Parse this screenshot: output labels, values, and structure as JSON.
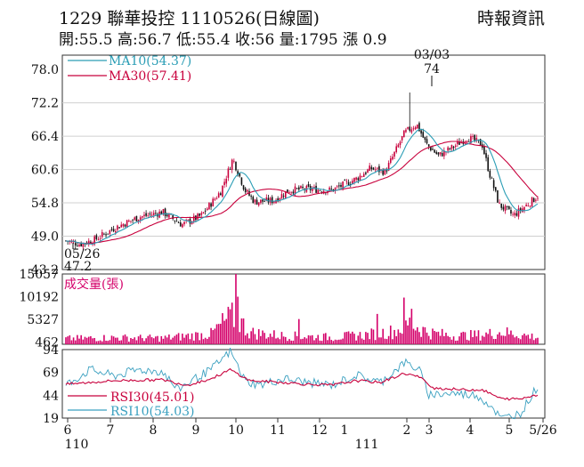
{
  "header": {
    "title": "1229  聯華投控 1110526(日線圖)",
    "quote": "開:55.5 高:56.7 低:55.4 收:56 量:1795 漲 0.9",
    "source": "時報資訊"
  },
  "colors": {
    "up": "#c8003c",
    "down": "#111111",
    "ma10": "#2a9db5",
    "ma30": "#c8003c",
    "volume": "#d4006a",
    "rsi30": "#c8003c",
    "rsi10": "#3aa0c0",
    "grid": "#d0d0d0"
  },
  "chart_data": [
    {
      "type": "line",
      "panel": "price",
      "ylim": [
        43.2,
        80.5
      ],
      "y_ticks": [
        "78.0",
        "72.2",
        "66.4",
        "60.6",
        "54.8",
        "49.0",
        "43.2"
      ],
      "legend": [
        "MA10(54.37)",
        "MA30(57.41)"
      ],
      "annotations": [
        {
          "label": "03/03",
          "value": "74"
        },
        {
          "label": "05/26",
          "value": "47.2"
        }
      ],
      "close_keypoints": [
        {
          "m": 0.0,
          "v": 48.2
        },
        {
          "m": 0.3,
          "v": 47.6
        },
        {
          "m": 0.6,
          "v": 48.4
        },
        {
          "m": 1.0,
          "v": 50.4
        },
        {
          "m": 1.5,
          "v": 52.3
        },
        {
          "m": 2.0,
          "v": 53.2
        },
        {
          "m": 2.4,
          "v": 51.0
        },
        {
          "m": 2.8,
          "v": 52.6
        },
        {
          "m": 3.2,
          "v": 56.8
        },
        {
          "m": 3.45,
          "v": 62.5
        },
        {
          "m": 3.7,
          "v": 57.0
        },
        {
          "m": 3.9,
          "v": 55.0
        },
        {
          "m": 4.3,
          "v": 55.2
        },
        {
          "m": 4.6,
          "v": 57.0
        },
        {
          "m": 5.0,
          "v": 57.2
        },
        {
          "m": 5.5,
          "v": 57.0
        },
        {
          "m": 6.0,
          "v": 59.0
        },
        {
          "m": 6.3,
          "v": 60.8
        },
        {
          "m": 6.6,
          "v": 60.2
        },
        {
          "m": 7.0,
          "v": 67.0
        },
        {
          "m": 7.25,
          "v": 68.5
        },
        {
          "m": 7.45,
          "v": 65.0
        },
        {
          "m": 7.7,
          "v": 63.0
        },
        {
          "m": 8.0,
          "v": 64.5
        },
        {
          "m": 8.3,
          "v": 66.2
        },
        {
          "m": 8.6,
          "v": 65.0
        },
        {
          "m": 8.75,
          "v": 60.0
        },
        {
          "m": 8.95,
          "v": 54.5
        },
        {
          "m": 9.25,
          "v": 52.6
        },
        {
          "m": 9.55,
          "v": 54.6
        },
        {
          "m": 9.75,
          "v": 56.0
        }
      ],
      "spike": {
        "m": 7.1,
        "high": 74.0
      },
      "ma_window": [
        10,
        30
      ]
    },
    {
      "type": "bar",
      "panel": "volume",
      "ylim": [
        0,
        15057
      ],
      "y_ticks": [
        "15057",
        "10192",
        "5327",
        "462"
      ],
      "legend": "成交量(張)",
      "volume_keypoints": [
        {
          "m": 0.0,
          "v": 1200
        },
        {
          "m": 1.0,
          "v": 1400
        },
        {
          "m": 2.0,
          "v": 1300
        },
        {
          "m": 3.0,
          "v": 2200
        },
        {
          "m": 3.3,
          "v": 5000
        },
        {
          "m": 3.5,
          "v": 6000
        },
        {
          "m": 3.8,
          "v": 2500
        },
        {
          "m": 4.5,
          "v": 1800
        },
        {
          "m": 5.5,
          "v": 1500
        },
        {
          "m": 6.2,
          "v": 2000
        },
        {
          "m": 6.8,
          "v": 2800
        },
        {
          "m": 7.1,
          "v": 4500
        },
        {
          "m": 7.5,
          "v": 2500
        },
        {
          "m": 8.0,
          "v": 1800
        },
        {
          "m": 8.6,
          "v": 2000
        },
        {
          "m": 9.0,
          "v": 2600
        },
        {
          "m": 9.75,
          "v": 1500
        }
      ],
      "volume_peaks": [
        {
          "m": 3.5,
          "v": 15057
        },
        {
          "m": 3.55,
          "v": 10192
        },
        {
          "m": 3.4,
          "v": 7500
        },
        {
          "m": 7.0,
          "v": 10000
        },
        {
          "m": 7.15,
          "v": 7600
        },
        {
          "m": 6.45,
          "v": 6500
        },
        {
          "m": 4.8,
          "v": 5400
        }
      ]
    },
    {
      "type": "line",
      "panel": "rsi",
      "ylim": [
        19,
        94
      ],
      "y_ticks": [
        "94",
        "69",
        "44",
        "19"
      ],
      "legend": [
        "RSI30(45.01)",
        "RSI10(54.03)"
      ],
      "rsi10_keypoints": [
        {
          "m": 0.0,
          "v": 55
        },
        {
          "m": 0.5,
          "v": 72
        },
        {
          "m": 1.0,
          "v": 65
        },
        {
          "m": 1.5,
          "v": 72
        },
        {
          "m": 2.0,
          "v": 70
        },
        {
          "m": 2.3,
          "v": 50
        },
        {
          "m": 2.6,
          "v": 60
        },
        {
          "m": 3.0,
          "v": 72
        },
        {
          "m": 3.4,
          "v": 92
        },
        {
          "m": 3.7,
          "v": 60
        },
        {
          "m": 4.0,
          "v": 55
        },
        {
          "m": 4.5,
          "v": 62
        },
        {
          "m": 5.0,
          "v": 58
        },
        {
          "m": 5.5,
          "v": 55
        },
        {
          "m": 6.0,
          "v": 66
        },
        {
          "m": 6.5,
          "v": 58
        },
        {
          "m": 7.0,
          "v": 80
        },
        {
          "m": 7.3,
          "v": 72
        },
        {
          "m": 7.5,
          "v": 45
        },
        {
          "m": 8.0,
          "v": 46
        },
        {
          "m": 8.5,
          "v": 44
        },
        {
          "m": 8.8,
          "v": 32
        },
        {
          "m": 9.0,
          "v": 18
        },
        {
          "m": 9.4,
          "v": 25
        },
        {
          "m": 9.75,
          "v": 54
        }
      ],
      "rsi30_keypoints": [
        {
          "m": 0.0,
          "v": 56
        },
        {
          "m": 1.0,
          "v": 60
        },
        {
          "m": 2.0,
          "v": 61
        },
        {
          "m": 2.5,
          "v": 55
        },
        {
          "m": 3.0,
          "v": 62
        },
        {
          "m": 3.4,
          "v": 72
        },
        {
          "m": 3.8,
          "v": 60
        },
        {
          "m": 4.5,
          "v": 58
        },
        {
          "m": 5.0,
          "v": 56
        },
        {
          "m": 5.5,
          "v": 55
        },
        {
          "m": 6.0,
          "v": 60
        },
        {
          "m": 6.5,
          "v": 58
        },
        {
          "m": 7.0,
          "v": 68
        },
        {
          "m": 7.3,
          "v": 64
        },
        {
          "m": 7.6,
          "v": 52
        },
        {
          "m": 8.2,
          "v": 50
        },
        {
          "m": 8.6,
          "v": 50
        },
        {
          "m": 9.0,
          "v": 40
        },
        {
          "m": 9.4,
          "v": 40
        },
        {
          "m": 9.75,
          "v": 45
        }
      ]
    }
  ],
  "x_axis": {
    "ticks": [
      {
        "m": 0.0,
        "label": "6"
      },
      {
        "m": 1.0,
        "label": "7"
      },
      {
        "m": 2.0,
        "label": "8"
      },
      {
        "m": 3.0,
        "label": "9"
      },
      {
        "m": 4.0,
        "label": "10"
      },
      {
        "m": 5.0,
        "label": "11"
      },
      {
        "m": 6.0,
        "label": "12"
      },
      {
        "m": 7.0,
        "label": "2"
      },
      {
        "m": 8.0,
        "label": "3"
      },
      {
        "m": 9.0,
        "label": "4"
      },
      {
        "m": 10.0,
        "label": "5"
      },
      {
        "m": 11.0,
        "label": "5/26"
      }
    ],
    "years": [
      {
        "m": 0.0,
        "label": "110"
      },
      {
        "m": 7.0,
        "label": "111"
      }
    ],
    "extra_tick": {
      "label": "1"
    }
  }
}
